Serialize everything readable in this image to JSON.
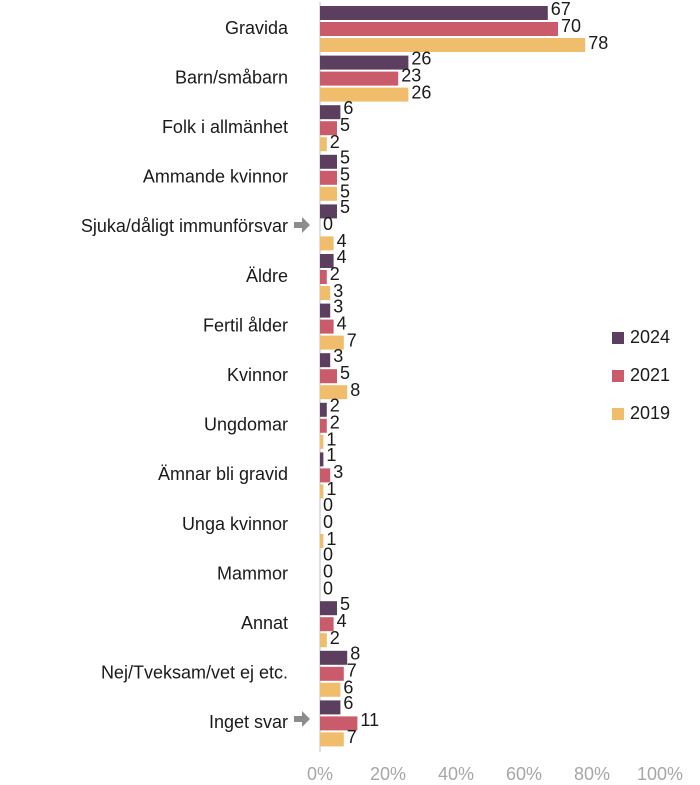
{
  "chart_data": {
    "type": "hbar",
    "categories": [
      "Gravida",
      "Barn/småbarn",
      "Folk i allmänhet",
      "Ammande kvinnor",
      "Sjuka/dåligt immunförsvar",
      "Äldre",
      "Fertil ålder",
      "Kvinnor",
      "Ungdomar",
      "Ämnar bli gravid",
      "Unga kvinnor",
      "Mammor",
      "Annat",
      "Nej/Tveksam/vet ej etc.",
      "Inget svar"
    ],
    "series": [
      {
        "name": "2024",
        "color": "#5c3f5f",
        "values": [
          67,
          26,
          6,
          5,
          5,
          4,
          3,
          3,
          2,
          1,
          0,
          0,
          5,
          8,
          6
        ]
      },
      {
        "name": "2021",
        "color": "#c95b6b",
        "values": [
          70,
          23,
          5,
          5,
          0,
          2,
          4,
          5,
          2,
          3,
          0,
          0,
          4,
          7,
          11
        ]
      },
      {
        "name": "2019",
        "color": "#f0bd6c",
        "values": [
          78,
          26,
          2,
          5,
          4,
          3,
          7,
          8,
          1,
          1,
          1,
          0,
          2,
          6,
          7
        ]
      }
    ],
    "xlim": [
      0,
      100
    ],
    "xticks": [
      {
        "value": 0,
        "label": "0%"
      },
      {
        "value": 20,
        "label": "20%"
      },
      {
        "value": 40,
        "label": "40%"
      },
      {
        "value": 60,
        "label": "60%"
      },
      {
        "value": 80,
        "label": "80%"
      },
      {
        "value": 100,
        "label": "100%"
      }
    ],
    "legend": "right"
  }
}
